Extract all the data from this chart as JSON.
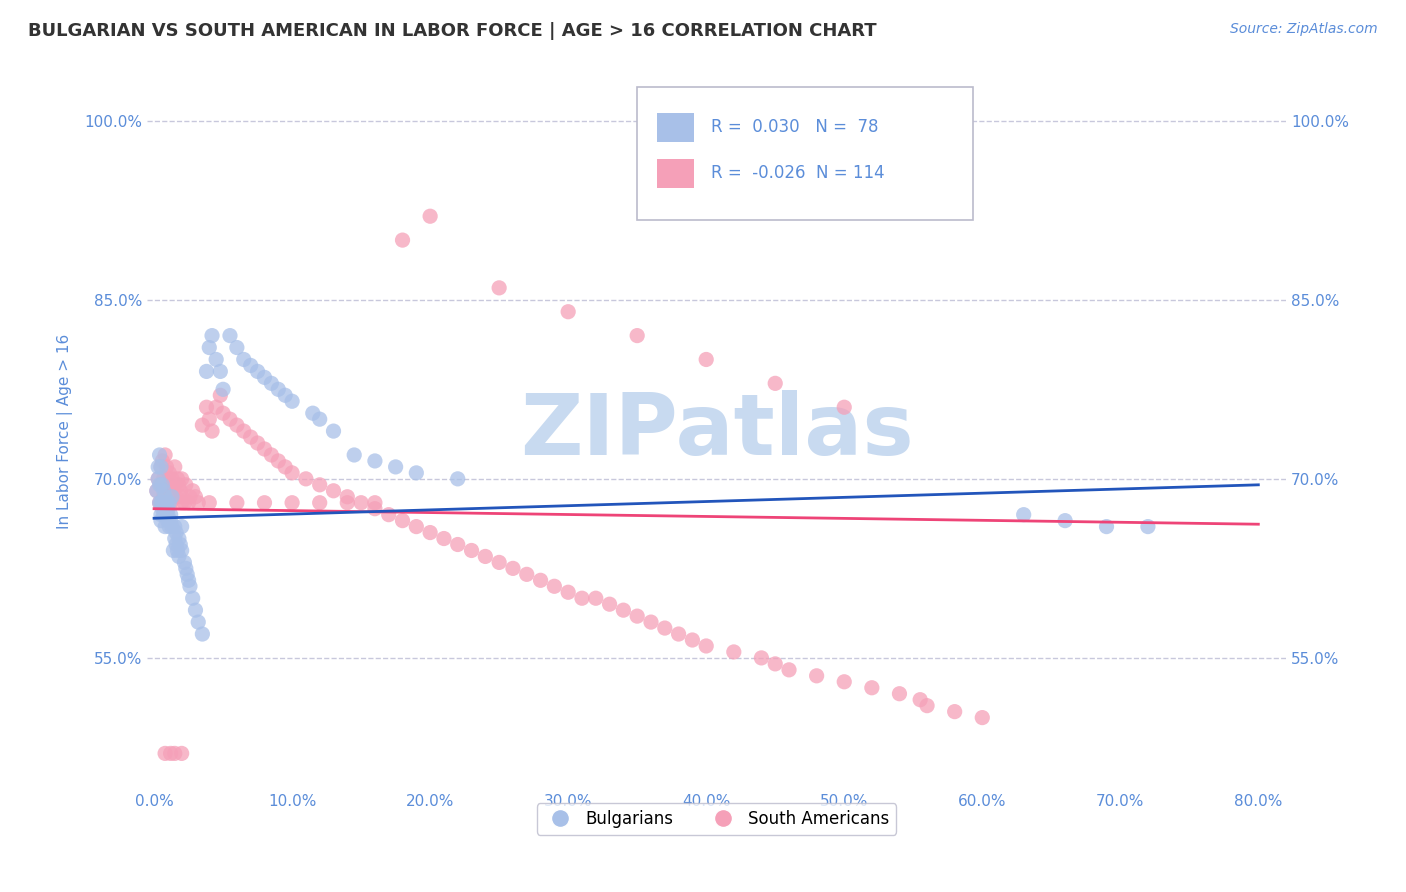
{
  "title": "BULGARIAN VS SOUTH AMERICAN IN LABOR FORCE | AGE > 16 CORRELATION CHART",
  "source_text": "Source: ZipAtlas.com",
  "ylabel": "In Labor Force | Age > 16",
  "xlim": [
    -0.005,
    0.82
  ],
  "ylim": [
    0.44,
    1.04
  ],
  "xticks": [
    0.0,
    0.1,
    0.2,
    0.3,
    0.4,
    0.5,
    0.6,
    0.7,
    0.8
  ],
  "xticklabels": [
    "0.0%",
    "10.0%",
    "20.0%",
    "30.0%",
    "40.0%",
    "50.0%",
    "60.0%",
    "70.0%",
    "80.0%"
  ],
  "yticks": [
    0.55,
    0.7,
    0.85,
    1.0
  ],
  "yticklabels": [
    "55.0%",
    "70.0%",
    "85.0%",
    "100.0%"
  ],
  "grid_color": "#c8c8dc",
  "title_color": "#333333",
  "axis_color": "#5b8dd9",
  "bg_color": "#ffffff",
  "blue_color": "#a8c0e8",
  "pink_color": "#f5a0b8",
  "blue_line_color": "#2255bb",
  "pink_line_color": "#ee4477",
  "watermark_color": "#c8daf0",
  "legend_R_blue": "0.030",
  "legend_N_blue": "78",
  "legend_R_pink": "-0.026",
  "legend_N_pink": "114",
  "legend_label_blue": "Bulgarians",
  "legend_label_pink": "South Americans",
  "blue_trend_x": [
    0.0,
    0.8
  ],
  "blue_trend_y": [
    0.667,
    0.695
  ],
  "pink_trend_x": [
    0.0,
    0.8
  ],
  "pink_trend_y": [
    0.675,
    0.662
  ],
  "blue_scatter_x": [
    0.002,
    0.003,
    0.003,
    0.004,
    0.004,
    0.004,
    0.005,
    0.005,
    0.005,
    0.005,
    0.006,
    0.006,
    0.006,
    0.007,
    0.007,
    0.007,
    0.008,
    0.008,
    0.008,
    0.009,
    0.009,
    0.01,
    0.01,
    0.01,
    0.011,
    0.011,
    0.012,
    0.012,
    0.013,
    0.013,
    0.014,
    0.015,
    0.015,
    0.016,
    0.016,
    0.017,
    0.018,
    0.018,
    0.019,
    0.02,
    0.02,
    0.022,
    0.023,
    0.024,
    0.025,
    0.026,
    0.028,
    0.03,
    0.032,
    0.035,
    0.038,
    0.04,
    0.042,
    0.045,
    0.048,
    0.05,
    0.055,
    0.06,
    0.065,
    0.07,
    0.075,
    0.08,
    0.085,
    0.09,
    0.095,
    0.1,
    0.115,
    0.12,
    0.13,
    0.145,
    0.16,
    0.175,
    0.19,
    0.22,
    0.63,
    0.66,
    0.69,
    0.72
  ],
  "blue_scatter_y": [
    0.69,
    0.71,
    0.7,
    0.695,
    0.68,
    0.72,
    0.67,
    0.665,
    0.71,
    0.68,
    0.695,
    0.68,
    0.675,
    0.67,
    0.68,
    0.69,
    0.66,
    0.675,
    0.685,
    0.68,
    0.67,
    0.665,
    0.675,
    0.67,
    0.66,
    0.68,
    0.665,
    0.67,
    0.66,
    0.685,
    0.64,
    0.65,
    0.66,
    0.645,
    0.655,
    0.64,
    0.65,
    0.635,
    0.645,
    0.64,
    0.66,
    0.63,
    0.625,
    0.62,
    0.615,
    0.61,
    0.6,
    0.59,
    0.58,
    0.57,
    0.79,
    0.81,
    0.82,
    0.8,
    0.79,
    0.775,
    0.82,
    0.81,
    0.8,
    0.795,
    0.79,
    0.785,
    0.78,
    0.775,
    0.77,
    0.765,
    0.755,
    0.75,
    0.74,
    0.72,
    0.715,
    0.71,
    0.705,
    0.7,
    0.67,
    0.665,
    0.66,
    0.66
  ],
  "pink_scatter_x": [
    0.002,
    0.003,
    0.004,
    0.005,
    0.005,
    0.006,
    0.007,
    0.007,
    0.008,
    0.008,
    0.009,
    0.01,
    0.01,
    0.011,
    0.012,
    0.012,
    0.013,
    0.014,
    0.015,
    0.015,
    0.016,
    0.017,
    0.018,
    0.019,
    0.02,
    0.02,
    0.022,
    0.023,
    0.025,
    0.026,
    0.028,
    0.03,
    0.032,
    0.035,
    0.038,
    0.04,
    0.042,
    0.045,
    0.048,
    0.05,
    0.055,
    0.06,
    0.065,
    0.07,
    0.075,
    0.08,
    0.085,
    0.09,
    0.095,
    0.1,
    0.11,
    0.12,
    0.13,
    0.14,
    0.15,
    0.16,
    0.17,
    0.18,
    0.19,
    0.2,
    0.21,
    0.22,
    0.23,
    0.24,
    0.25,
    0.26,
    0.27,
    0.28,
    0.29,
    0.3,
    0.31,
    0.32,
    0.33,
    0.34,
    0.35,
    0.36,
    0.37,
    0.38,
    0.39,
    0.4,
    0.42,
    0.44,
    0.45,
    0.46,
    0.48,
    0.5,
    0.52,
    0.54,
    0.555,
    0.56,
    0.58,
    0.6,
    0.25,
    0.3,
    0.35,
    0.4,
    0.45,
    0.5,
    0.2,
    0.18,
    0.16,
    0.14,
    0.12,
    0.1,
    0.08,
    0.06,
    0.04,
    0.02,
    0.01,
    0.005,
    0.008,
    0.012,
    0.015,
    0.02
  ],
  "pink_scatter_y": [
    0.69,
    0.7,
    0.68,
    0.71,
    0.695,
    0.715,
    0.7,
    0.685,
    0.72,
    0.695,
    0.71,
    0.7,
    0.69,
    0.705,
    0.695,
    0.68,
    0.7,
    0.69,
    0.695,
    0.71,
    0.685,
    0.7,
    0.695,
    0.69,
    0.685,
    0.7,
    0.68,
    0.695,
    0.68,
    0.685,
    0.69,
    0.685,
    0.68,
    0.745,
    0.76,
    0.75,
    0.74,
    0.76,
    0.77,
    0.755,
    0.75,
    0.745,
    0.74,
    0.735,
    0.73,
    0.725,
    0.72,
    0.715,
    0.71,
    0.705,
    0.7,
    0.695,
    0.69,
    0.685,
    0.68,
    0.675,
    0.67,
    0.665,
    0.66,
    0.655,
    0.65,
    0.645,
    0.64,
    0.635,
    0.63,
    0.625,
    0.62,
    0.615,
    0.61,
    0.605,
    0.6,
    0.6,
    0.595,
    0.59,
    0.585,
    0.58,
    0.575,
    0.57,
    0.565,
    0.56,
    0.555,
    0.55,
    0.545,
    0.54,
    0.535,
    0.53,
    0.525,
    0.52,
    0.515,
    0.51,
    0.505,
    0.5,
    0.86,
    0.84,
    0.82,
    0.8,
    0.78,
    0.76,
    0.92,
    0.9,
    0.68,
    0.68,
    0.68,
    0.68,
    0.68,
    0.68,
    0.68,
    0.68,
    0.68,
    0.68,
    0.47,
    0.47,
    0.47,
    0.47
  ]
}
